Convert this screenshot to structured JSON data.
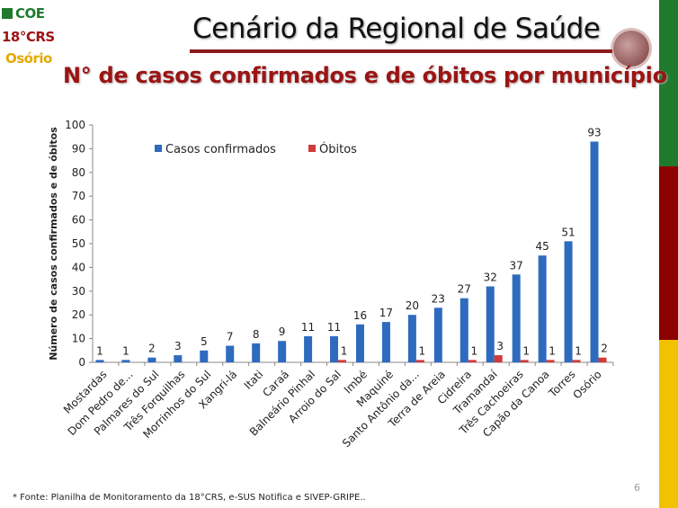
{
  "header": {
    "logo": {
      "line1": "COE",
      "line2": "18°CRS",
      "line3": "Osório"
    },
    "title": "Cenário da Regional de Saúde",
    "subtitle": "N° de casos confirmados e de óbitos por município"
  },
  "colors": {
    "cases": "#2e6bbf",
    "deaths": "#d23a3a",
    "side_green": "#1f7a2e",
    "side_red": "#8b0000",
    "side_yellow": "#f2c200",
    "logo_green": "#1f7a2e",
    "logo_red": "#9b1414",
    "logo_yellow": "#e6a800"
  },
  "footnote": "* Fonte: Planilha de Monitoramento da 18°CRS, e-SUS Notifica e SIVEP-GRIPE..",
  "page_number": "6",
  "chart_data": {
    "type": "bar",
    "title": "",
    "xlabel": "",
    "ylabel": "Número de casos confirmados e de óbitos",
    "ylim": [
      0,
      100
    ],
    "yticks": [
      0,
      10,
      20,
      30,
      40,
      50,
      60,
      70,
      80,
      90,
      100
    ],
    "grid": false,
    "legend": "top-left",
    "categories": [
      "Mostardas",
      "Dom Pedro de...",
      "Palmares do Sul",
      "Três Forquilhas",
      "Morrinhos do Sul",
      "Xangri-lá",
      "Itati",
      "Caraá",
      "Balneário Pinhal",
      "Arroio do Sal",
      "Imbé",
      "Maquiné",
      "Santo Antônio da...",
      "Terra de Areia",
      "Cidreira",
      "Tramandaí",
      "Três Cachoeiras",
      "Capão da Canoa",
      "Torres",
      "Osório"
    ],
    "series": [
      {
        "name": "Casos confirmados",
        "values": [
          1,
          1,
          2,
          3,
          5,
          7,
          8,
          9,
          11,
          11,
          16,
          17,
          20,
          23,
          27,
          32,
          37,
          45,
          51,
          93
        ]
      },
      {
        "name": "Óbitos",
        "values": [
          0,
          0,
          0,
          0,
          0,
          0,
          0,
          0,
          0,
          1,
          0,
          0,
          1,
          0,
          1,
          3,
          1,
          1,
          1,
          2
        ]
      }
    ]
  }
}
